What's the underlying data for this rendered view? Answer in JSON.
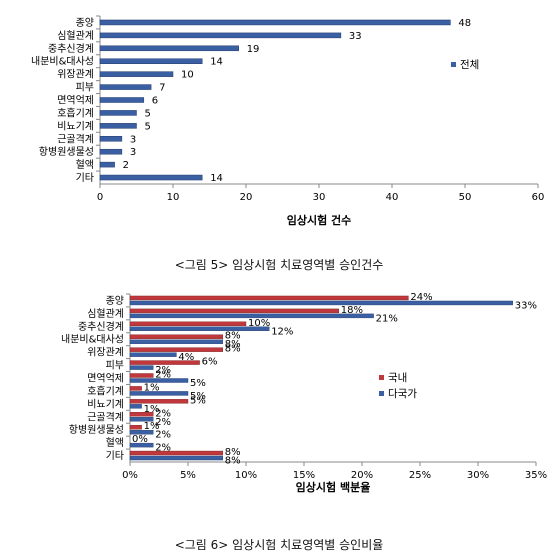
{
  "chart_data": [
    {
      "type": "bar",
      "orientation": "horizontal",
      "categories": [
        "종양",
        "심혈관계",
        "중추신경계",
        "내분비&대사성",
        "위장관계",
        "피부",
        "면역억제",
        "호흡기계",
        "비뇨기계",
        "근골격계",
        "항병원생물성",
        "혈액",
        "기타"
      ],
      "series": [
        {
          "name": "전체",
          "values": [
            48,
            33,
            19,
            14,
            10,
            7,
            6,
            5,
            5,
            3,
            3,
            2,
            14
          ]
        }
      ],
      "data_labels": [
        "48",
        "33",
        "19",
        "14",
        "10",
        "7",
        "6",
        "5",
        "5",
        "3",
        "3",
        "2",
        "14"
      ],
      "xlabel": "임상시험 건수",
      "xlim": [
        0,
        60
      ],
      "xticks": [
        "0",
        "10",
        "20",
        "30",
        "40",
        "50",
        "60"
      ],
      "legend": "right",
      "colors": {
        "전체": "#3b5fa3"
      }
    },
    {
      "type": "bar",
      "orientation": "horizontal",
      "categories": [
        "종양",
        "심혈관계",
        "중추신경계",
        "내분비&대사성",
        "위장관계",
        "피부",
        "면역억제",
        "호흡기계",
        "비뇨기계",
        "근골격계",
        "항병원생물성",
        "혈액",
        "기타"
      ],
      "series": [
        {
          "name": "국내",
          "values": [
            24,
            18,
            10,
            8,
            8,
            6,
            2,
            1,
            5,
            2,
            1,
            0,
            8
          ],
          "labels": [
            "24%",
            "18%",
            "10%",
            "8%",
            "8%",
            "6%",
            "2%",
            "1%",
            "5%",
            "2%",
            "1%",
            "0%",
            "8%"
          ]
        },
        {
          "name": "다국가",
          "values": [
            33,
            21,
            12,
            8,
            4,
            2,
            5,
            5,
            1,
            2,
            2,
            2,
            8
          ],
          "labels": [
            "33%",
            "21%",
            "12%",
            "8%",
            "4%",
            "2%",
            "5%",
            "5%",
            "1%",
            "2%",
            "2%",
            "2%",
            "8%"
          ]
        }
      ],
      "xlabel": "임상시험 백분율",
      "xlim": [
        0,
        35
      ],
      "xticks": [
        "0%",
        "5%",
        "10%",
        "15%",
        "20%",
        "25%",
        "30%",
        "35%"
      ],
      "legend": "right",
      "colors": {
        "국내": "#c0383c",
        "다국가": "#3b5fa3"
      }
    }
  ],
  "captions": {
    "fig5": "<그림 5> 임상시험 치료영역별 승인건수",
    "fig6": "<그림 6> 임상시험 치료영역별 승인비율"
  }
}
